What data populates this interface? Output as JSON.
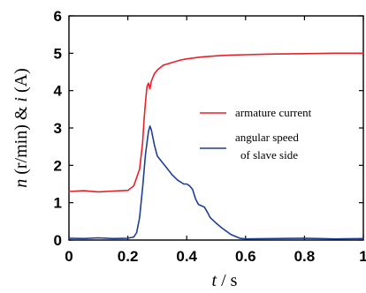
{
  "chart_data": {
    "type": "line",
    "xlabel": {
      "var": "t",
      "unit": " / s"
    },
    "ylabel": {
      "var1": "n",
      "unit1": " (r/min) & ",
      "var2": "i",
      "unit2": " (A)"
    },
    "xlim": [
      0,
      1
    ],
    "ylim": [
      0,
      6
    ],
    "xticks": [
      0,
      0.2,
      0.4,
      0.6,
      0.8,
      1
    ],
    "xtick_labels": [
      "0",
      "0.2",
      "0.4",
      "0.6",
      "0.8",
      "1"
    ],
    "yticks": [
      0,
      1,
      2,
      3,
      4,
      5,
      6
    ],
    "ytick_labels": [
      "0",
      "1",
      "2",
      "3",
      "4",
      "5",
      "6"
    ],
    "grid": false,
    "legend_position": "center-right",
    "legend": [
      "armature current",
      "angular speed",
      "of  slave side"
    ],
    "series": [
      {
        "name": "armature current",
        "color": "#e8202a",
        "x": [
          0,
          0.05,
          0.1,
          0.15,
          0.2,
          0.22,
          0.24,
          0.25,
          0.255,
          0.26,
          0.265,
          0.27,
          0.275,
          0.28,
          0.29,
          0.3,
          0.32,
          0.35,
          0.38,
          0.4,
          0.45,
          0.5,
          0.55,
          0.6,
          0.65,
          0.7,
          0.8,
          0.9,
          1.0
        ],
        "values": [
          1.3,
          1.32,
          1.29,
          1.31,
          1.33,
          1.45,
          1.9,
          2.6,
          3.2,
          3.7,
          4.1,
          4.2,
          4.05,
          4.25,
          4.45,
          4.55,
          4.68,
          4.75,
          4.82,
          4.85,
          4.9,
          4.93,
          4.95,
          4.96,
          4.97,
          4.98,
          4.99,
          5.0,
          5.0
        ]
      },
      {
        "name": "angular speed of slave side",
        "color": "#1f3f95",
        "x": [
          0,
          0.05,
          0.1,
          0.15,
          0.2,
          0.22,
          0.23,
          0.24,
          0.25,
          0.26,
          0.27,
          0.275,
          0.28,
          0.29,
          0.3,
          0.31,
          0.33,
          0.35,
          0.37,
          0.39,
          0.4,
          0.41,
          0.42,
          0.43,
          0.44,
          0.45,
          0.46,
          0.47,
          0.48,
          0.5,
          0.52,
          0.55,
          0.58,
          0.6,
          0.7,
          0.8,
          0.9,
          1.0
        ],
        "values": [
          0.05,
          0.04,
          0.06,
          0.04,
          0.05,
          0.08,
          0.2,
          0.6,
          1.4,
          2.3,
          2.9,
          3.05,
          2.95,
          2.55,
          2.25,
          2.15,
          1.95,
          1.75,
          1.6,
          1.5,
          1.5,
          1.45,
          1.35,
          1.1,
          0.95,
          0.92,
          0.88,
          0.75,
          0.6,
          0.45,
          0.32,
          0.15,
          0.05,
          0.03,
          0.04,
          0.05,
          0.03,
          0.04
        ]
      }
    ]
  }
}
